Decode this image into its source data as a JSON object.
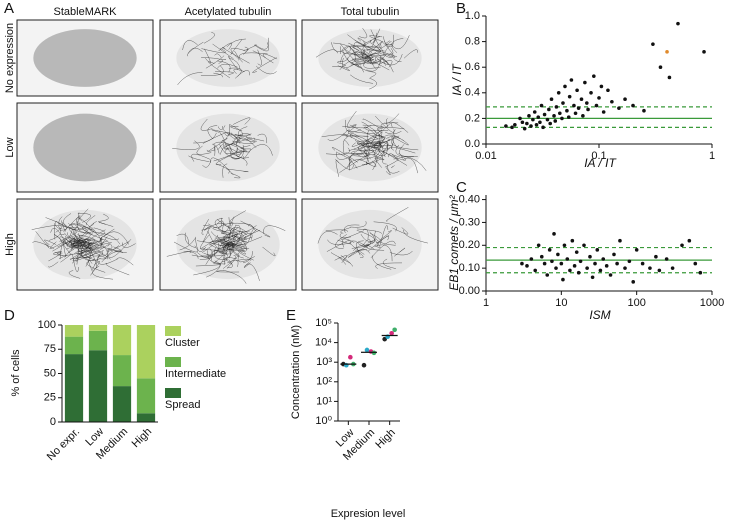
{
  "panel_labels": [
    "A",
    "B",
    "C",
    "D",
    "E"
  ],
  "microscopy": {
    "columns": [
      "StableMARK",
      "Acetylated tubulin",
      "Total tubulin"
    ],
    "rows": [
      "No expression",
      "Low",
      "High"
    ]
  },
  "chart_data": [
    {
      "type": "scatter",
      "xlabel": "IA / IT",
      "ylabel": "IA / IT",
      "log_x": true,
      "xlim": [
        0.01,
        1
      ],
      "xticks": [
        0.01,
        0.1,
        1
      ],
      "ylim": [
        0,
        1
      ],
      "yticks": [
        {
          "value": 0,
          "label": "0.0"
        },
        {
          "value": 0.2,
          "label": "0.2"
        },
        {
          "value": 0.4,
          "label": "0.4"
        },
        {
          "value": 0.6,
          "label": "0.6"
        },
        {
          "value": 0.8,
          "label": "0.8"
        },
        {
          "value": 1,
          "label": "1.0"
        }
      ],
      "hlines": [
        {
          "value": 0.2,
          "style": "solid"
        },
        {
          "value": 0.29,
          "style": "dashed"
        },
        {
          "value": 0.13,
          "style": "dashed"
        }
      ],
      "hline_color": "#3a9a3a",
      "series": [
        {
          "color": "#111111",
          "x": [
            0.015,
            0.017,
            0.018,
            0.02,
            0.021,
            0.022,
            0.023,
            0.024,
            0.025,
            0.026,
            0.027,
            0.028,
            0.029,
            0.03,
            0.031,
            0.032,
            0.033,
            0.035,
            0.036,
            0.037,
            0.038,
            0.04,
            0.041,
            0.042,
            0.044,
            0.045,
            0.047,
            0.048,
            0.05,
            0.052,
            0.054,
            0.055,
            0.057,
            0.06,
            0.062,
            0.064,
            0.066,
            0.07,
            0.072,
            0.075,
            0.078,
            0.08,
            0.085,
            0.09,
            0.095,
            0.1,
            0.105,
            0.11,
            0.12,
            0.13,
            0.15,
            0.17,
            0.2,
            0.25,
            0.3,
            0.35,
            0.42,
            0.5,
            0.85
          ],
          "values": [
            0.14,
            0.13,
            0.15,
            0.2,
            0.17,
            0.12,
            0.16,
            0.22,
            0.14,
            0.19,
            0.25,
            0.15,
            0.21,
            0.17,
            0.3,
            0.13,
            0.23,
            0.19,
            0.27,
            0.16,
            0.35,
            0.22,
            0.18,
            0.29,
            0.4,
            0.24,
            0.2,
            0.32,
            0.45,
            0.26,
            0.21,
            0.37,
            0.5,
            0.3,
            0.24,
            0.42,
            0.28,
            0.35,
            0.22,
            0.48,
            0.32,
            0.27,
            0.4,
            0.53,
            0.3,
            0.36,
            0.45,
            0.25,
            0.42,
            0.33,
            0.28,
            0.35,
            0.3,
            0.26,
            0.78,
            0.6,
            0.52,
            0.94,
            0.72
          ]
        },
        {
          "color": "#e08a2c",
          "x": [
            0.4
          ],
          "values": [
            0.72
          ]
        }
      ]
    },
    {
      "type": "scatter",
      "xlabel": "ISM",
      "ylabel": "EB1 comets / μm²",
      "log_x": true,
      "xlim": [
        1,
        1000
      ],
      "xticks": [
        1,
        10,
        100,
        1000
      ],
      "ylim": [
        0,
        0.42
      ],
      "yticks": [
        {
          "value": 0,
          "label": "0.00"
        },
        {
          "value": 0.1,
          "label": "0.10"
        },
        {
          "value": 0.2,
          "label": "0.20"
        },
        {
          "value": 0.3,
          "label": "0.30"
        },
        {
          "value": 0.4,
          "label": "0.40"
        }
      ],
      "hlines": [
        {
          "value": 0.135,
          "style": "solid"
        },
        {
          "value": 0.19,
          "style": "dashed"
        },
        {
          "value": 0.08,
          "style": "dashed"
        }
      ],
      "hline_color": "#3a9a3a",
      "series": [
        {
          "color": "#111111",
          "x": [
            3,
            3.5,
            4,
            4.5,
            5,
            5.5,
            6,
            6.5,
            7,
            7.5,
            8,
            8.5,
            9,
            10,
            10.5,
            11,
            12,
            13,
            14,
            15,
            16,
            17,
            18,
            20,
            22,
            24,
            26,
            28,
            30,
            33,
            36,
            40,
            45,
            50,
            55,
            60,
            70,
            80,
            90,
            100,
            120,
            150,
            180,
            200,
            250,
            300,
            400,
            500,
            600,
            700
          ],
          "values": [
            0.12,
            0.11,
            0.14,
            0.09,
            0.2,
            0.15,
            0.12,
            0.07,
            0.18,
            0.13,
            0.25,
            0.1,
            0.16,
            0.12,
            0.05,
            0.2,
            0.14,
            0.09,
            0.22,
            0.11,
            0.17,
            0.08,
            0.13,
            0.2,
            0.1,
            0.15,
            0.06,
            0.12,
            0.18,
            0.09,
            0.14,
            0.11,
            0.07,
            0.16,
            0.12,
            0.22,
            0.1,
            0.13,
            0.04,
            0.18,
            0.12,
            0.1,
            0.15,
            0.09,
            0.14,
            0.1,
            0.2,
            0.22,
            0.12,
            0.08
          ]
        }
      ]
    },
    {
      "type": "stacked_bar",
      "ylabel": "% of cells",
      "categories": [
        "No expr.",
        "Low",
        "Medium",
        "High"
      ],
      "ylim": [
        0,
        100
      ],
      "yticks": [
        0,
        25,
        50,
        75,
        100
      ],
      "series": [
        {
          "name": "Spread",
          "color": "#2f6e35",
          "values": [
            70,
            74,
            37,
            9
          ]
        },
        {
          "name": "Intermediate",
          "color": "#6cb34d",
          "values": [
            18,
            20,
            32,
            36
          ]
        },
        {
          "name": "Cluster",
          "color": "#abd15e",
          "values": [
            12,
            6,
            31,
            55
          ]
        }
      ]
    },
    {
      "type": "dot",
      "ylabel": "Concentration (nM)",
      "xlabel": "Expresion level",
      "log_y": true,
      "categories": [
        "Low",
        "Medium",
        "High"
      ],
      "ylim": [
        1,
        100000
      ],
      "yticks": [
        {
          "value": 1,
          "label": "10⁰"
        },
        {
          "value": 10,
          "label": "10¹"
        },
        {
          "value": 100,
          "label": "10²"
        },
        {
          "value": 1000,
          "label": "10³"
        },
        {
          "value": 10000,
          "label": "10⁴"
        },
        {
          "value": 100000,
          "label": "10⁵"
        }
      ],
      "values": [
        [
          800,
          700,
          1800,
          800
        ],
        [
          700,
          4200,
          3500,
          3000
        ],
        [
          15000,
          20000,
          30000,
          45000
        ]
      ],
      "point_colors": [
        "#222222",
        "#2aa9c9",
        "#d42a7a",
        "#3fae6a"
      ],
      "medians": [
        800,
        3200,
        23000
      ]
    }
  ]
}
